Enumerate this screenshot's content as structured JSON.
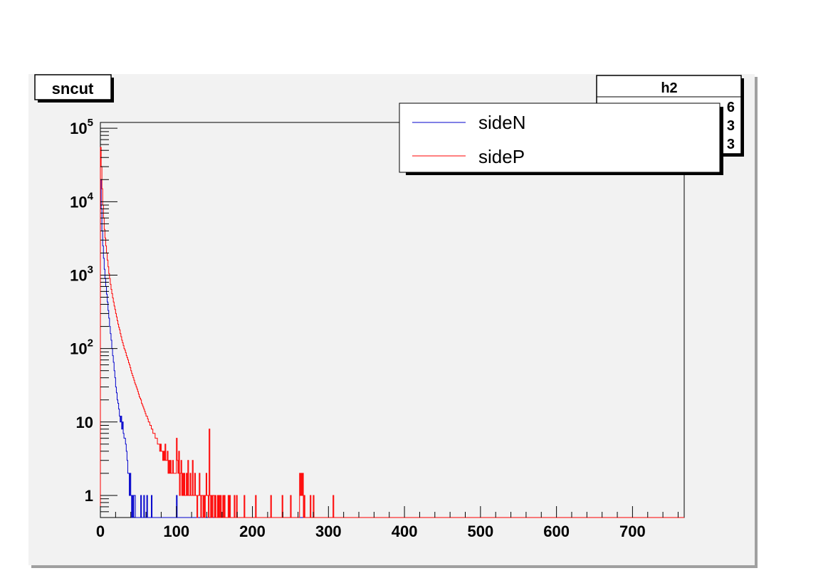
{
  "chart_data": {
    "type": "histogram",
    "title": "sncut",
    "stats_box": {
      "name": "h2",
      "partial_rows": [
        "6",
        "3",
        "3"
      ]
    },
    "xlim": [
      0,
      768
    ],
    "ylim": [
      0.5,
      120000
    ],
    "ylog": true,
    "x_ticks": [
      0,
      100,
      200,
      300,
      400,
      500,
      600,
      700
    ],
    "y_ticks": [
      {
        "value": 1,
        "base": "1",
        "exp": ""
      },
      {
        "value": 10,
        "base": "10",
        "exp": ""
      },
      {
        "value": 100,
        "base": "10",
        "exp": "2"
      },
      {
        "value": 1000,
        "base": "10",
        "exp": "3"
      },
      {
        "value": 10000,
        "base": "10",
        "exp": "4"
      },
      {
        "value": 100000,
        "base": "10",
        "exp": "5"
      }
    ],
    "legend": {
      "position": "top-right"
    },
    "series": [
      {
        "name": "sideN",
        "color": "#0000cc",
        "bin_width": 1,
        "values": [
          20000,
          8000,
          4000,
          2500,
          1700,
          1200,
          900,
          700,
          550,
          430,
          330,
          260,
          200,
          160,
          130,
          100,
          80,
          65,
          50,
          40,
          30,
          25,
          20,
          18,
          15,
          12,
          10,
          12,
          8,
          10,
          7,
          6,
          6,
          5,
          4,
          3,
          2,
          2,
          1,
          2,
          1,
          0,
          1,
          0,
          1,
          1,
          0,
          0,
          0,
          0,
          0,
          0,
          0,
          1,
          0,
          0,
          0,
          1,
          0,
          0,
          0,
          1,
          0,
          0,
          0,
          0,
          0,
          1,
          0,
          0,
          0,
          0,
          0,
          0,
          0,
          0,
          0,
          0,
          0,
          0,
          0,
          0,
          0,
          0,
          0,
          0,
          0,
          0,
          0,
          0,
          0,
          0,
          0,
          0,
          0,
          0,
          0,
          0,
          0,
          0,
          1
        ]
      },
      {
        "name": "sideP",
        "color": "#ff0000",
        "bin_width": 1,
        "values": [
          55000,
          30000,
          15000,
          9000,
          6000,
          4200,
          3200,
          2500,
          2000,
          1600,
          1300,
          1050,
          900,
          750,
          640,
          560,
          490,
          430,
          380,
          340,
          300,
          270,
          240,
          215,
          195,
          180,
          160,
          145,
          130,
          120,
          110,
          100,
          95,
          88,
          80,
          75,
          70,
          64,
          60,
          55,
          50,
          46,
          43,
          40,
          37,
          34,
          32,
          30,
          28,
          26,
          24,
          22,
          21,
          20,
          18,
          17,
          16,
          15,
          14,
          13,
          12,
          12,
          11,
          10,
          10,
          9,
          9,
          8,
          8,
          7,
          7,
          7,
          6,
          6,
          6,
          5,
          5,
          5,
          4,
          5,
          4,
          4,
          3,
          4,
          3,
          5,
          3,
          3,
          4,
          2,
          3,
          2,
          3,
          2,
          2,
          3,
          2,
          2,
          2,
          2,
          6,
          3,
          2,
          4,
          1,
          2,
          3,
          1,
          2,
          1,
          2,
          1,
          1,
          2,
          1,
          3,
          1,
          1,
          2,
          1,
          1,
          3,
          1,
          1,
          2,
          1,
          1,
          0,
          1,
          1,
          2,
          1,
          0,
          1,
          1,
          0,
          1,
          0,
          1,
          2,
          1,
          1,
          0,
          8,
          1,
          0,
          1,
          0,
          1,
          1,
          0,
          1,
          0,
          0,
          1,
          0,
          1,
          0,
          1,
          0,
          0,
          1,
          0,
          1,
          0,
          0,
          0,
          0,
          1,
          0,
          1,
          0,
          0,
          0,
          0,
          0,
          1,
          0,
          0,
          1,
          0,
          0,
          0,
          0,
          0,
          0,
          0,
          0,
          0,
          1,
          0,
          0,
          0,
          0,
          0,
          0,
          0,
          0,
          0,
          0,
          0,
          0,
          0,
          0,
          1,
          0,
          0,
          0,
          0,
          0,
          0,
          0,
          0,
          0,
          0,
          0,
          0,
          0,
          0,
          0,
          0,
          0,
          0,
          0,
          1,
          0,
          0,
          0,
          0,
          0,
          0,
          0,
          0,
          0,
          0,
          0,
          0,
          0,
          0,
          1,
          0,
          0,
          0,
          0,
          0,
          0,
          0,
          0,
          0,
          0,
          1,
          0,
          0,
          0,
          0,
          0,
          0,
          0,
          0,
          0,
          0,
          0,
          2,
          1,
          2,
          1,
          2,
          0,
          1,
          0,
          0,
          0,
          0,
          0,
          0,
          0,
          1,
          0,
          0,
          0,
          1,
          0,
          0,
          0,
          0,
          0,
          0,
          0,
          0,
          0,
          0,
          0,
          0,
          0,
          0,
          0,
          0,
          0,
          0,
          0,
          0,
          0,
          0,
          0,
          0,
          0,
          1
        ]
      }
    ]
  }
}
